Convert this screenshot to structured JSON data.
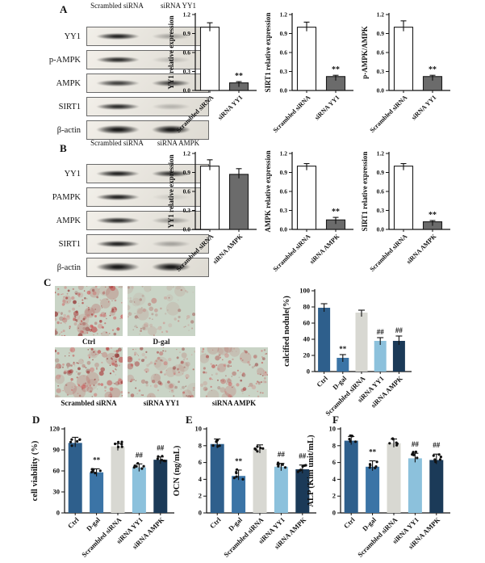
{
  "palette": {
    "axis": "#111111",
    "bar_white": "#ffffff",
    "bar_gray": "#6b6b6b",
    "ctrl_blue": "#2e5f8c",
    "dgal_blue": "#3b74a6",
    "scrambled_gray": "#d8d8d2",
    "yy1_lightblue": "#8cc1dc",
    "ampk_navy": "#1b3a58",
    "stain_bg": "#c9d4c6",
    "stain_red": "#b03434"
  },
  "panel_a": {
    "label": "A",
    "blot": {
      "lane_headers": [
        "Scrambled siRNA",
        "siRNA YY1"
      ],
      "rows": [
        {
          "label": "YY1",
          "bands": [
            0.95,
            0.3
          ]
        },
        {
          "label": "p-AMPK",
          "bands": [
            0.9,
            0.18
          ]
        },
        {
          "label": "AMPK",
          "bands": [
            0.8,
            0.75
          ]
        },
        {
          "label": "SIRT1",
          "bands": [
            0.9,
            0.22
          ]
        },
        {
          "label": "β-actin",
          "bands": [
            1.0,
            1.0
          ]
        }
      ]
    }
  },
  "panel_b": {
    "label": "B",
    "blot": {
      "lane_headers": [
        "Scrambled siRNA",
        "siRNA AMPK"
      ],
      "rows": [
        {
          "label": "YY1",
          "bands": [
            0.95,
            0.85
          ]
        },
        {
          "label": "PAMPK",
          "bands": [
            0.95,
            0.1
          ]
        },
        {
          "label": "AMPK",
          "bands": [
            0.9,
            0.35
          ]
        },
        {
          "label": "SIRT1",
          "bands": [
            0.95,
            0.3
          ]
        },
        {
          "label": "β-actin",
          "bands": [
            1.0,
            1.0
          ]
        }
      ]
    }
  },
  "panel_c": {
    "label": "C",
    "images": [
      {
        "label": "Ctrl",
        "density": 150,
        "intensity": 0.9,
        "seed": 11
      },
      {
        "label": "D-gal",
        "density": 70,
        "intensity": 0.5,
        "seed": 22
      },
      {
        "label": "Scrambled siRNA",
        "density": 140,
        "intensity": 0.85,
        "seed": 33
      },
      {
        "label": "siRNA YY1",
        "density": 105,
        "intensity": 0.7,
        "seed": 44
      },
      {
        "label": "siRNA AMPK",
        "density": 115,
        "intensity": 0.75,
        "seed": 55
      }
    ]
  },
  "panel_d": {
    "label": "D"
  },
  "panel_e": {
    "label": "E"
  },
  "panel_f": {
    "label": "F"
  },
  "chart_data": [
    {
      "id": "a1",
      "type": "bar",
      "size": "s",
      "ylabel": "YY1 relative expression",
      "categories": [
        "Scrambled siRNA",
        "siRNA YY1"
      ],
      "values": [
        1.0,
        0.12
      ],
      "errors": [
        0.07,
        0.02
      ],
      "sig": [
        "",
        "**"
      ],
      "ylim": [
        0,
        1.2
      ],
      "yticks": {
        "values": [
          0,
          0.3,
          0.6,
          0.9,
          1.2
        ],
        "labels": [
          "0.0",
          "0.3",
          "0.6",
          "0.9",
          "1.2"
        ]
      },
      "colors": [
        "#ffffff",
        "#6b6b6b"
      ],
      "bar_stroke": "#1a1a1a",
      "dots": false
    },
    {
      "id": "a2",
      "type": "bar",
      "size": "s",
      "ylabel": "SIRT1 relative expression",
      "categories": [
        "Scrambled siRNA",
        "siRNA YY1"
      ],
      "values": [
        1.0,
        0.22
      ],
      "errors": [
        0.08,
        0.02
      ],
      "sig": [
        "",
        "**"
      ],
      "ylim": [
        0,
        1.2
      ],
      "yticks": {
        "values": [
          0,
          0.3,
          0.6,
          0.9,
          1.2
        ],
        "labels": [
          "0.0",
          "0.3",
          "0.6",
          "0.9",
          "1.2"
        ]
      },
      "colors": [
        "#ffffff",
        "#6b6b6b"
      ],
      "bar_stroke": "#1a1a1a",
      "dots": false
    },
    {
      "id": "a3",
      "type": "bar",
      "size": "s",
      "ylabel": "p-AMPK/AMPK",
      "categories": [
        "Scrambled siRNA",
        "siRNA YY1"
      ],
      "values": [
        1.0,
        0.22
      ],
      "errors": [
        0.1,
        0.02
      ],
      "sig": [
        "",
        "**"
      ],
      "ylim": [
        0,
        1.2
      ],
      "yticks": {
        "values": [
          0,
          0.3,
          0.6,
          0.9,
          1.2
        ],
        "labels": [
          "0.0",
          "0.3",
          "0.6",
          "0.9",
          "1.2"
        ]
      },
      "colors": [
        "#ffffff",
        "#6b6b6b"
      ],
      "bar_stroke": "#1a1a1a",
      "dots": false
    },
    {
      "id": "b1",
      "type": "bar",
      "size": "s",
      "ylabel": "YY1 relative expression",
      "categories": [
        "Scrambled siRNA",
        "siRNA AMPK"
      ],
      "values": [
        1.0,
        0.87
      ],
      "errors": [
        0.1,
        0.09
      ],
      "sig": [
        "",
        ""
      ],
      "ylim": [
        0,
        1.2
      ],
      "yticks": {
        "values": [
          0,
          0.3,
          0.6,
          0.9,
          1.2
        ],
        "labels": [
          "0.0",
          "0.3",
          "0.6",
          "0.9",
          "1.2"
        ]
      },
      "colors": [
        "#ffffff",
        "#6b6b6b"
      ],
      "bar_stroke": "#1a1a1a",
      "dots": false
    },
    {
      "id": "b2",
      "type": "bar",
      "size": "s",
      "ylabel": "AMPK relative expression",
      "categories": [
        "Scrambled siRNA",
        "siRNA AMPK"
      ],
      "values": [
        1.0,
        0.15
      ],
      "errors": [
        0.04,
        0.04
      ],
      "sig": [
        "",
        "**"
      ],
      "ylim": [
        0,
        1.2
      ],
      "yticks": {
        "values": [
          0,
          0.3,
          0.6,
          0.9,
          1.2
        ],
        "labels": [
          "0.0",
          "0.3",
          "0.6",
          "0.9",
          "1.2"
        ]
      },
      "colors": [
        "#ffffff",
        "#6b6b6b"
      ],
      "bar_stroke": "#1a1a1a",
      "dots": false
    },
    {
      "id": "b3",
      "type": "bar",
      "size": "s",
      "ylabel": "SIRT1 relative expression",
      "categories": [
        "Scrambled siRNA",
        "siRNA AMPK"
      ],
      "values": [
        1.0,
        0.12
      ],
      "errors": [
        0.04,
        0.02
      ],
      "sig": [
        "",
        "**"
      ],
      "ylim": [
        0,
        1.2
      ],
      "yticks": {
        "values": [
          0,
          0.3,
          0.6,
          0.9,
          1.2
        ],
        "labels": [
          "0.0",
          "0.3",
          "0.6",
          "0.9",
          "1.2"
        ]
      },
      "colors": [
        "#ffffff",
        "#6b6b6b"
      ],
      "bar_stroke": "#1a1a1a",
      "dots": false
    },
    {
      "id": "c",
      "type": "bar",
      "size": "m",
      "ylabel": "calcified nodule(%)",
      "categories": [
        "Ctrl",
        "D-gal",
        "Scrambled siRNA",
        "siRNA YY1",
        "siRNA AMPK"
      ],
      "values": [
        79,
        17,
        73,
        38,
        38
      ],
      "errors": [
        5,
        4,
        3,
        4,
        6
      ],
      "sig": [
        "",
        "**",
        "",
        "##",
        "##"
      ],
      "ylim": [
        0,
        100
      ],
      "yticks": {
        "values": [
          0,
          20,
          40,
          60,
          80,
          100
        ],
        "labels": [
          "0",
          "20",
          "40",
          "60",
          "80",
          "100"
        ]
      },
      "colors": [
        "#2e5f8c",
        "#3b74a6",
        "#d8d8d2",
        "#8cc1dc",
        "#1b3a58"
      ],
      "bar_stroke": "none",
      "dots": false
    },
    {
      "id": "d",
      "type": "bar",
      "size": "l",
      "ylabel": "cell viability (%)",
      "categories": [
        "Ctrl",
        "D-gal",
        "Scrambled siRNA",
        "siRNA YY1",
        "siRNA AMPK"
      ],
      "values": [
        100,
        58,
        95,
        65,
        76
      ],
      "errors": [
        8,
        5,
        4,
        5,
        4
      ],
      "sig": [
        "",
        "**",
        "",
        "##",
        "##"
      ],
      "ylim": [
        0,
        120
      ],
      "yticks": {
        "values": [
          0,
          30,
          60,
          90,
          120
        ],
        "labels": [
          "0",
          "30",
          "60",
          "90",
          "120"
        ]
      },
      "colors": [
        "#2e5f8c",
        "#3b74a6",
        "#d8d8d2",
        "#8cc1dc",
        "#1b3a58"
      ],
      "bar_stroke": "none",
      "dots": true
    },
    {
      "id": "e",
      "type": "bar",
      "size": "l",
      "ylabel": "OCN (ng/mL)",
      "categories": [
        "Ctrl",
        "D-gal",
        "Scrambled siRNA",
        "siRNA YY1",
        "siRNA AMPK"
      ],
      "values": [
        8.2,
        4.4,
        7.6,
        5.5,
        5.2
      ],
      "errors": [
        0.6,
        0.7,
        0.5,
        0.4,
        0.5
      ],
      "sig": [
        "",
        "**",
        "",
        "##",
        "##"
      ],
      "ylim": [
        0,
        10
      ],
      "yticks": {
        "values": [
          0,
          2,
          4,
          6,
          8,
          10
        ],
        "labels": [
          "0",
          "2",
          "4",
          "6",
          "8",
          "10"
        ]
      },
      "colors": [
        "#2e5f8c",
        "#3b74a6",
        "#d8d8d2",
        "#8cc1dc",
        "#1b3a58"
      ],
      "bar_stroke": "none",
      "dots": true
    },
    {
      "id": "f",
      "type": "bar",
      "size": "l",
      "ylabel": "ALP (Kim unit/mL)",
      "categories": [
        "Ctrl",
        "D-gal",
        "Scrambled siRNA",
        "siRNA YY1",
        "siRNA AMPK"
      ],
      "values": [
        8.6,
        5.5,
        8.3,
        6.5,
        6.3
      ],
      "errors": [
        0.5,
        0.7,
        0.5,
        0.6,
        0.7
      ],
      "sig": [
        "",
        "**",
        "",
        "##",
        "##"
      ],
      "ylim": [
        0,
        10
      ],
      "yticks": {
        "values": [
          0,
          2,
          4,
          6,
          8,
          10
        ],
        "labels": [
          "0",
          "2",
          "4",
          "6",
          "8",
          "10"
        ]
      },
      "colors": [
        "#2e5f8c",
        "#3b74a6",
        "#d8d8d2",
        "#8cc1dc",
        "#1b3a58"
      ],
      "bar_stroke": "none",
      "dots": true
    }
  ]
}
